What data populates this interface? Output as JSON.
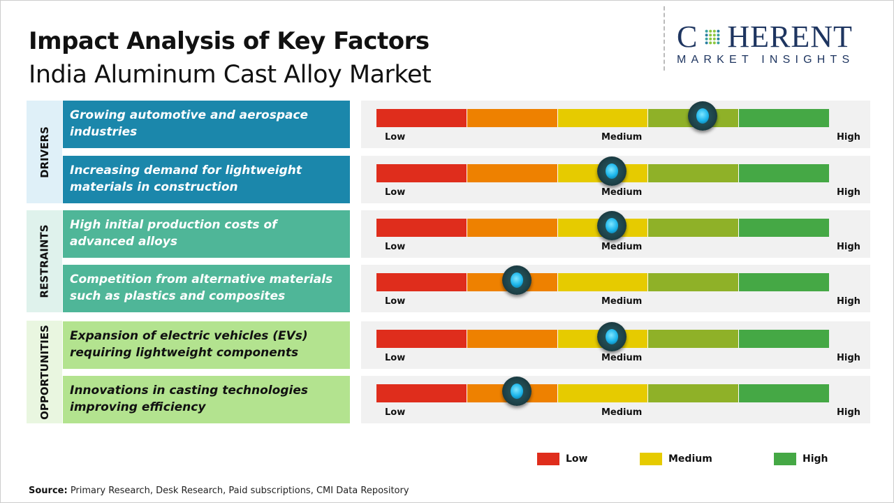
{
  "header": {
    "title": "Impact Analysis of Key Factors",
    "subtitle": "India Aluminum Cast Alloy Market"
  },
  "logo": {
    "text_top": "COHERENT",
    "text_bottom": "MARKET INSIGHTS"
  },
  "scale_labels": {
    "low": "Low",
    "medium": "Medium",
    "high": "High"
  },
  "scale_colors": [
    "#df2d1c",
    "#ee8100",
    "#e6cb00",
    "#8fb128",
    "#45a845"
  ],
  "sections": [
    {
      "name": "DRIVERS",
      "header_bg": "#dff0f8",
      "box_bg": "#1b87ab",
      "text_color": "#ffffff",
      "factors": [
        {
          "text": "Growing automotive and aerospace industries",
          "impact": 0.72
        },
        {
          "text": "Increasing demand for lightweight materials in construction",
          "impact": 0.52
        }
      ]
    },
    {
      "name": "RESTRAINTS",
      "header_bg": "#dff2ec",
      "box_bg": "#4fb698",
      "text_color": "#ffffff",
      "factors": [
        {
          "text": "High initial production costs of advanced alloys",
          "impact": 0.52
        },
        {
          "text": "Competition from alternative materials such as plastics and composites",
          "impact": 0.31
        }
      ]
    },
    {
      "name": "OPPORTUNITIES",
      "header_bg": "#e9f6e0",
      "box_bg": "#b3e38f",
      "text_color": "#111111",
      "factors": [
        {
          "text": "Expansion of electric vehicles (EVs) requiring lightweight components",
          "impact": 0.52
        },
        {
          "text": "Innovations in casting technologies improving efficiency",
          "impact": 0.31
        }
      ]
    }
  ],
  "legend": [
    {
      "label": "Low",
      "color": "#df2d1c"
    },
    {
      "label": "Medium",
      "color": "#e6cb00"
    },
    {
      "label": "High",
      "color": "#45a845"
    }
  ],
  "source": {
    "label": "Source:",
    "text": " Primary Research, Desk Research, Paid subscriptions, CMI Data Repository"
  }
}
